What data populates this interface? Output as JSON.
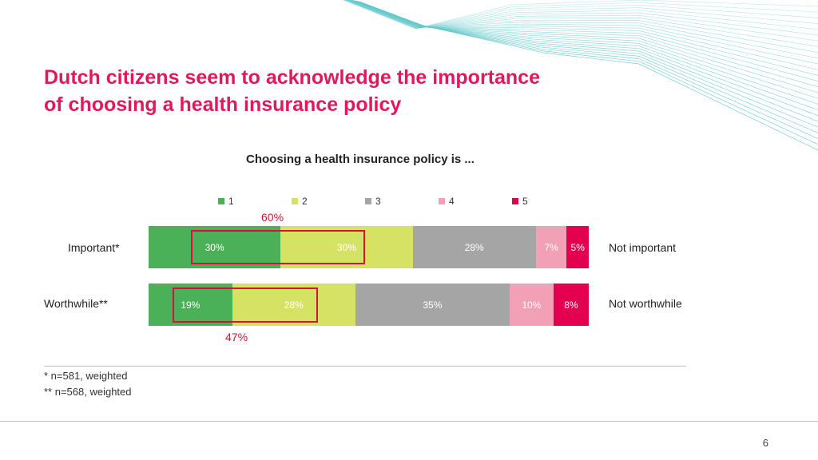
{
  "slide": {
    "title_line1": "Dutch citizens seem to acknowledge the importance",
    "title_line2": "of choosing a health insurance policy",
    "page_number": "6"
  },
  "colors": {
    "title": "#e3185b",
    "highlight": "#d2143a",
    "decor_lines": "#5fc7c9"
  },
  "chart_data": {
    "type": "bar",
    "orientation": "horizontal",
    "stacked": true,
    "normalized": true,
    "title": "Choosing a health insurance policy is ...",
    "legend": {
      "position": "top",
      "entries": [
        {
          "label": "1",
          "color": "#4bb158"
        },
        {
          "label": "2",
          "color": "#d6e264"
        },
        {
          "label": "3",
          "color": "#a5a5a5"
        },
        {
          "label": "4",
          "color": "#f2a0b6"
        },
        {
          "label": "5",
          "color": "#e2004f"
        }
      ]
    },
    "rows": [
      {
        "left_label": "Important*",
        "right_label": "Not important",
        "values": [
          30,
          30,
          28,
          7,
          5
        ],
        "labels": [
          "30%",
          "30%",
          "28%",
          "7%",
          "5%"
        ]
      },
      {
        "left_label": "Worthwhile**",
        "right_label": "Not worthwhile",
        "values": [
          19,
          28,
          35,
          10,
          8
        ],
        "labels": [
          "19%",
          "28%",
          "35%",
          "10%",
          "8%"
        ]
      }
    ],
    "highlights": [
      {
        "row": 0,
        "label": "60%"
      },
      {
        "row": 1,
        "label": "47%"
      }
    ]
  },
  "footnotes": [
    "* n=581, weighted",
    "** n=568, weighted"
  ]
}
